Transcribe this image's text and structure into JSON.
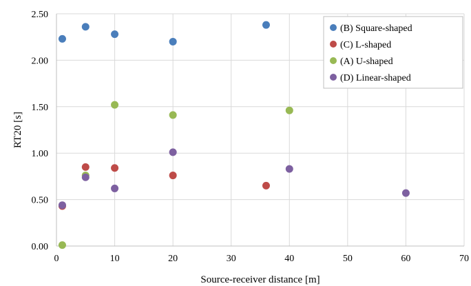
{
  "chart_data": {
    "type": "scatter",
    "xlabel": "Source-receiver distance [m]",
    "ylabel": "RT20 [s]",
    "xlim": [
      0,
      70
    ],
    "ylim": [
      0.0,
      2.5
    ],
    "x_ticks": [
      "0",
      "10",
      "20",
      "30",
      "40",
      "50",
      "60",
      "70"
    ],
    "y_ticks": [
      "0.00",
      "0.50",
      "1.00",
      "1.50",
      "2.00",
      "2.50"
    ],
    "grid": true,
    "legend_position": "top-right",
    "series": [
      {
        "name": "(B) Square-shaped",
        "color": "#4a7ebb",
        "points": [
          [
            1,
            2.23
          ],
          [
            5,
            2.36
          ],
          [
            10,
            2.28
          ],
          [
            20,
            2.2
          ],
          [
            36,
            2.38
          ]
        ]
      },
      {
        "name": "(C) L-shaped",
        "color": "#be4b48",
        "points": [
          [
            1,
            0.43
          ],
          [
            5,
            0.85
          ],
          [
            10,
            0.84
          ],
          [
            20,
            0.76
          ],
          [
            36,
            0.65
          ]
        ]
      },
      {
        "name": "(A) U-shaped",
        "color": "#98b954",
        "points": [
          [
            1,
            0.01
          ],
          [
            5,
            0.76
          ],
          [
            10,
            1.52
          ],
          [
            20,
            1.41
          ],
          [
            40,
            1.46
          ]
        ]
      },
      {
        "name": "(D) Linear-shaped",
        "color": "#7d60a0",
        "points": [
          [
            1,
            0.44
          ],
          [
            5,
            0.74
          ],
          [
            10,
            0.62
          ],
          [
            20,
            1.01
          ],
          [
            40,
            0.83
          ],
          [
            60,
            0.57
          ]
        ]
      }
    ]
  }
}
